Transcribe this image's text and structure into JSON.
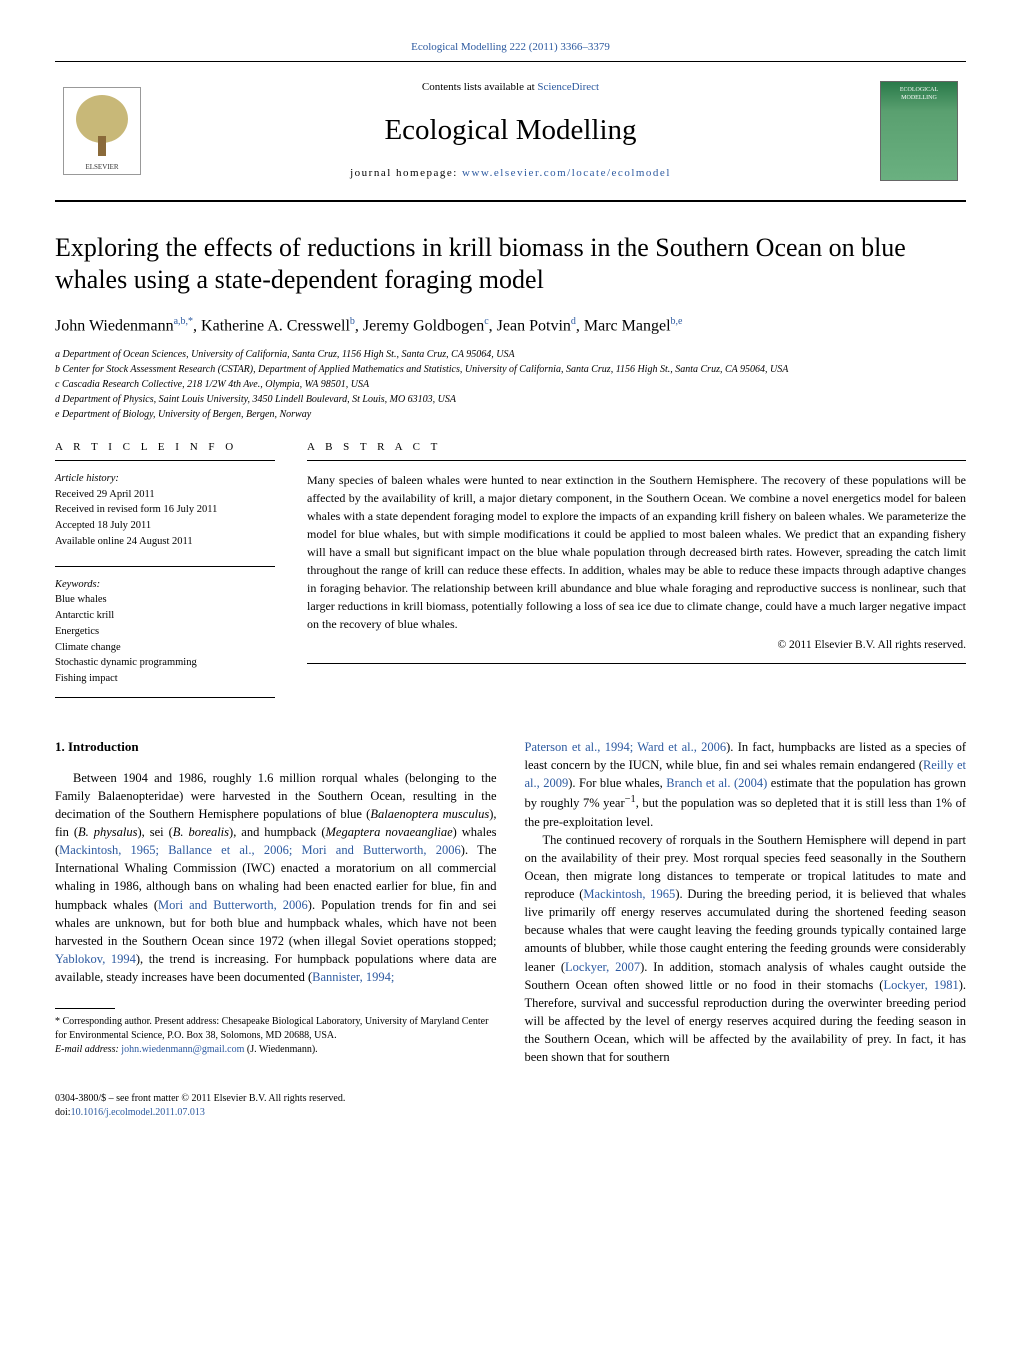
{
  "colors": {
    "link": "#2d5aa0",
    "text": "#000000",
    "background": "#ffffff",
    "cover_gradient_top": "#2a7a4a",
    "cover_gradient_bottom": "#6ab080"
  },
  "typography": {
    "body_font": "Georgia, 'Times New Roman', serif",
    "title_size_pt": 26,
    "journal_size_pt": 29,
    "author_size_pt": 16,
    "body_size_pt": 12.5,
    "abstract_size_pt": 12,
    "footnote_size_pt": 10
  },
  "top_link": "Ecological Modelling 222 (2011) 3366–3379",
  "header": {
    "contents_prefix": "Contents lists available at ",
    "contents_link": "ScienceDirect",
    "journal_name": "Ecological Modelling",
    "homepage_prefix": "journal homepage: ",
    "homepage_link": "www.elsevier.com/locate/ecolmodel",
    "cover_label": "ECOLOGICAL MODELLING"
  },
  "article": {
    "title": "Exploring the effects of reductions in krill biomass in the Southern Ocean on blue whales using a state-dependent foraging model",
    "authors_html": "John Wiedenmann<sup>a,b,*</sup>, Katherine A. Cresswell<sup>b</sup>, Jeremy Goldbogen<sup>c</sup>, Jean Potvin<sup>d</sup>, Marc Mangel<sup>b,e</sup>",
    "affiliations": [
      "a  Department of Ocean Sciences, University of California, Santa Cruz, 1156 High St., Santa Cruz, CA 95064, USA",
      "b  Center for Stock Assessment Research (CSTAR), Department of Applied Mathematics and Statistics, University of California, Santa Cruz, 1156 High St., Santa Cruz, CA 95064, USA",
      "c  Cascadia Research Collective, 218 1/2W 4th Ave., Olympia, WA 98501, USA",
      "d  Department of Physics, Saint Louis University, 3450 Lindell Boulevard, St Louis, MO 63103, USA",
      "e  Department of Biology, University of Bergen, Bergen, Norway"
    ]
  },
  "info": {
    "label_article_info": "A R T I C L E   I N F O",
    "label_abstract": "A B S T R A C T",
    "history_head": "Article history:",
    "history_lines": [
      "Received 29 April 2011",
      "Received in revised form 16 July 2011",
      "Accepted 18 July 2011",
      "Available online 24 August 2011"
    ],
    "keywords_head": "Keywords:",
    "keywords": [
      "Blue whales",
      "Antarctic krill",
      "Energetics",
      "Climate change",
      "Stochastic dynamic programming",
      "Fishing impact"
    ],
    "abstract": "Many species of baleen whales were hunted to near extinction in the Southern Hemisphere. The recovery of these populations will be affected by the availability of krill, a major dietary component, in the Southern Ocean. We combine a novel energetics model for baleen whales with a state dependent foraging model to explore the impacts of an expanding krill fishery on baleen whales. We parameterize the model for blue whales, but with simple modifications it could be applied to most baleen whales. We predict that an expanding fishery will have a small but significant impact on the blue whale population through decreased birth rates. However, spreading the catch limit throughout the range of krill can reduce these effects. In addition, whales may be able to reduce these impacts through adaptive changes in foraging behavior. The relationship between krill abundance and blue whale foraging and reproductive success is nonlinear, such that larger reductions in krill biomass, potentially following a loss of sea ice due to climate change, could have a much larger negative impact on the recovery of blue whales.",
    "copyright": "© 2011 Elsevier B.V. All rights reserved."
  },
  "body": {
    "section_heading": "1.  Introduction",
    "col1_p1_html": "Between 1904 and 1986, roughly 1.6 million rorqual whales (belonging to the Family Balaenopteridae) were harvested in the Southern Ocean, resulting in the decimation of the Southern Hemisphere populations of blue (<span class=\"ital\">Balaenoptera musculus</span>), fin (<span class=\"ital\">B. physalus</span>), sei (<span class=\"ital\">B. borealis</span>), and humpback (<span class=\"ital\">Megaptera novaeangliae</span>) whales (<a class=\"cite\" href=\"#\">Mackintosh, 1965; Ballance et al., 2006; Mori and Butterworth, 2006</a>). The International Whaling Commission (IWC) enacted a moratorium on all commercial whaling in 1986, although bans on whaling had been enacted earlier for blue, fin and humpback whales (<a class=\"cite\" href=\"#\">Mori and Butterworth, 2006</a>). Population trends for fin and sei whales are unknown, but for both blue and humpback whales, which have not been harvested in the Southern Ocean since 1972 (when illegal Soviet operations stopped; <a class=\"cite\" href=\"#\">Yablokov, 1994</a>), the trend is increasing. For humpback populations where data are available, steady increases have been documented (<a class=\"cite\" href=\"#\">Bannister, 1994;</a>",
    "col2_p1_html": "<a class=\"cite\" href=\"#\">Paterson et al., 1994; Ward et al., 2006</a>). In fact, humpbacks are listed as a species of least concern by the IUCN, while blue, fin and sei whales remain endangered (<a class=\"cite\" href=\"#\">Reilly et al., 2009</a>). For blue whales, <a class=\"cite\" href=\"#\">Branch et al. (2004)</a> estimate that the population has grown by roughly 7% year<sup>−1</sup>, but the population was so depleted that it is still less than 1% of the pre-exploitation level.",
    "col2_p2_html": "The continued recovery of rorquals in the Southern Hemisphere will depend in part on the availability of their prey. Most rorqual species feed seasonally in the Southern Ocean, then migrate long distances to temperate or tropical latitudes to mate and reproduce (<a class=\"cite\" href=\"#\">Mackintosh, 1965</a>). During the breeding period, it is believed that whales live primarily off energy reserves accumulated during the shortened feeding season because whales that were caught leaving the feeding grounds typically contained large amounts of blubber, while those caught entering the feeding grounds were considerably leaner (<a class=\"cite\" href=\"#\">Lockyer, 2007</a>). In addition, stomach analysis of whales caught outside the Southern Ocean often showed little or no food in their stomachs (<a class=\"cite\" href=\"#\">Lockyer, 1981</a>). Therefore, survival and successful reproduction during the overwinter breeding period will be affected by the level of energy reserves acquired during the feeding season in the Southern Ocean, which will be affected by the availability of prey. In fact, it has been shown that for southern"
  },
  "footnote": {
    "corr_html": "* Corresponding author. Present address: Chesapeake Biological Laboratory, University of Maryland Center for Environmental Science, P.O. Box 38, Solomons, MD 20688, USA.",
    "email_label": "E-mail address: ",
    "email": "john.wiedenmann@gmail.com",
    "email_suffix": " (J. Wiedenmann)."
  },
  "bottom": {
    "line1": "0304-3800/$ – see front matter © 2011 Elsevier B.V. All rights reserved.",
    "doi_prefix": "doi:",
    "doi": "10.1016/j.ecolmodel.2011.07.013"
  }
}
